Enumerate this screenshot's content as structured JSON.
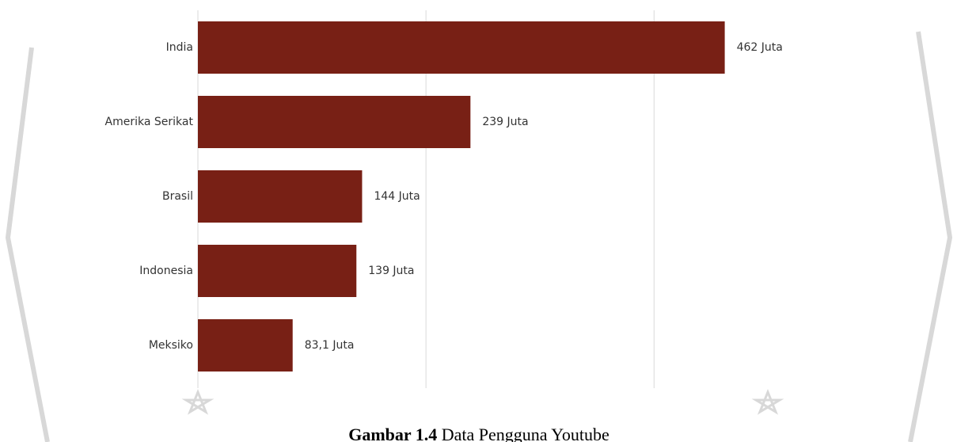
{
  "chart_data": {
    "type": "bar",
    "orientation": "horizontal",
    "categories": [
      "India",
      "Amerika Serikat",
      "Brasil",
      "Indonesia",
      "Meksiko"
    ],
    "values": [
      462,
      239,
      144,
      139,
      83.1
    ],
    "value_labels": [
      "462 Juta",
      "239 Juta",
      "144 Juta",
      "139 Juta",
      "83,1 Juta"
    ],
    "color": "#782015",
    "xlim": [
      0,
      590
    ],
    "xticks": [
      0,
      200,
      400
    ],
    "grid": true,
    "caption_label": "Gambar 1.4",
    "caption": "Data Pengguna Youtube"
  }
}
